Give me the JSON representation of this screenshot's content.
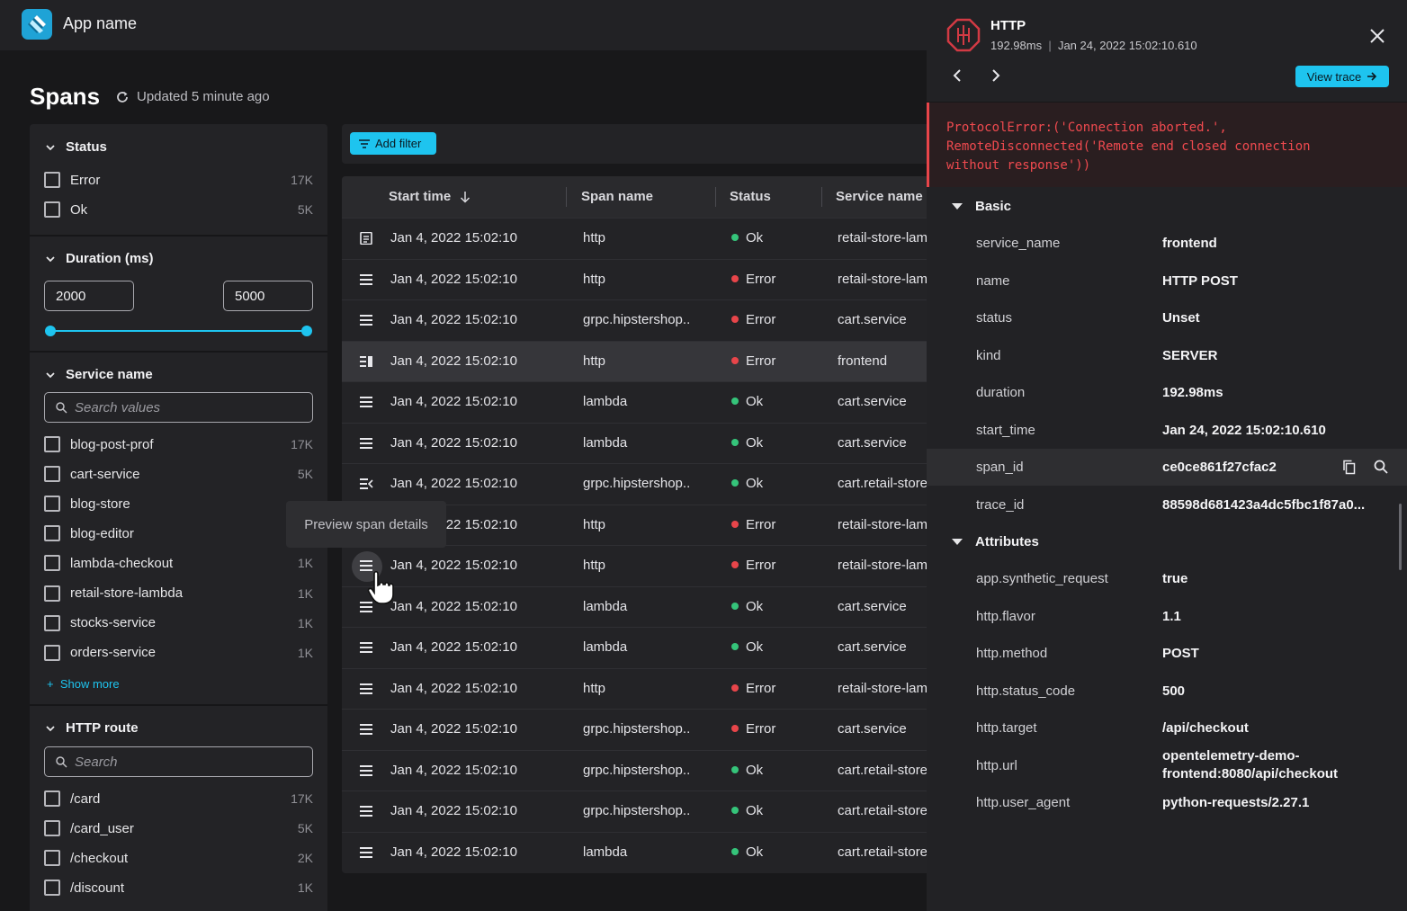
{
  "app": {
    "name": "App name"
  },
  "page": {
    "title": "Spans",
    "updated": "Updated 5 minute ago"
  },
  "filters": {
    "status": {
      "title": "Status",
      "items": [
        {
          "label": "Error",
          "count": "17K"
        },
        {
          "label": "Ok",
          "count": "5K"
        }
      ]
    },
    "duration": {
      "title": "Duration (ms)",
      "min": "2000",
      "max": "5000"
    },
    "service": {
      "title": "Service name",
      "placeholder": "Search values",
      "items": [
        {
          "label": "blog-post-prof",
          "count": "17K"
        },
        {
          "label": "cart-service",
          "count": "5K"
        },
        {
          "label": "blog-store",
          "count": ""
        },
        {
          "label": "blog-editor",
          "count": ""
        },
        {
          "label": "lambda-checkout",
          "count": "1K"
        },
        {
          "label": "retail-store-lambda",
          "count": "1K"
        },
        {
          "label": "stocks-service",
          "count": "1K"
        },
        {
          "label": "orders-service",
          "count": "1K"
        }
      ],
      "show_more": "Show more"
    },
    "route": {
      "title": "HTTP route",
      "placeholder": "Search",
      "items": [
        {
          "label": "/card",
          "count": "17K"
        },
        {
          "label": "/card_user",
          "count": "5K"
        },
        {
          "label": "/checkout",
          "count": "2K"
        },
        {
          "label": "/discount",
          "count": "1K"
        }
      ]
    }
  },
  "toolbar": {
    "add_filter": "Add filter"
  },
  "table": {
    "columns": [
      "Start time",
      "Span name",
      "Status",
      "Service name"
    ],
    "rows": [
      {
        "time": "Jan 4, 2022  15:02:10",
        "span": "http",
        "status": "Ok",
        "service": "retail-store-lambda"
      },
      {
        "time": "Jan 4, 2022  15:02:10",
        "span": "http",
        "status": "Error",
        "service": "retail-store-lambda"
      },
      {
        "time": "Jan 4, 2022  15:02:10",
        "span": "grpc.hipstershop..",
        "status": "Error",
        "service": "cart.service"
      },
      {
        "time": "Jan 4, 2022  15:02:10",
        "span": "http",
        "status": "Error",
        "service": "frontend"
      },
      {
        "time": "Jan 4, 2022  15:02:10",
        "span": "lambda",
        "status": "Ok",
        "service": "cart.service"
      },
      {
        "time": "Jan 4, 2022  15:02:10",
        "span": "lambda",
        "status": "Ok",
        "service": "cart.service"
      },
      {
        "time": "Jan 4, 2022  15:02:10",
        "span": "grpc.hipstershop..",
        "status": "Ok",
        "service": "cart.retail-store"
      },
      {
        "time": "Jan 4, 2022  15:02:10",
        "span": "http",
        "status": "Error",
        "service": "retail-store-lambda"
      },
      {
        "time": "Jan 4, 2022  15:02:10",
        "span": "http",
        "status": "Error",
        "service": "retail-store-lambda"
      },
      {
        "time": "Jan 4, 2022  15:02:10",
        "span": "lambda",
        "status": "Ok",
        "service": "cart.service"
      },
      {
        "time": "Jan 4, 2022  15:02:10",
        "span": "lambda",
        "status": "Ok",
        "service": "cart.service"
      },
      {
        "time": "Jan 4, 2022  15:02:10",
        "span": "http",
        "status": "Error",
        "service": "retail-store-lambda"
      },
      {
        "time": "Jan 4, 2022  15:02:10",
        "span": "grpc.hipstershop..",
        "status": "Error",
        "service": "cart.service"
      },
      {
        "time": "Jan 4, 2022  15:02:10",
        "span": "grpc.hipstershop..",
        "status": "Ok",
        "service": "cart.retail-store"
      },
      {
        "time": "Jan 4, 2022  15:02:10",
        "span": "grpc.hipstershop..",
        "status": "Ok",
        "service": "cart.retail-store"
      },
      {
        "time": "Jan 4, 2022  15:02:10",
        "span": "lambda",
        "status": "Ok",
        "service": "cart.retail-store"
      }
    ]
  },
  "tooltip": "Preview span details",
  "panel": {
    "title": "HTTP",
    "duration": "192.98ms",
    "timestamp": "Jan 24, 2022  15:02:10.610",
    "view_trace": "View trace",
    "error": "ProtocolError:('Connection aborted.',\nRemoteDisconnected('Remote end closed connection\nwithout response'))",
    "basic_title": "Basic",
    "basic": [
      {
        "k": "service_name",
        "v": "frontend"
      },
      {
        "k": "name",
        "v": "HTTP POST"
      },
      {
        "k": "status",
        "v": "Unset"
      },
      {
        "k": "kind",
        "v": "SERVER"
      },
      {
        "k": "duration",
        "v": "192.98ms"
      },
      {
        "k": "start_time",
        "v": "Jan 24, 2022  15:02:10.610"
      },
      {
        "k": "span_id",
        "v": "ce0ce861f27cfac2"
      },
      {
        "k": "trace_id",
        "v": "88598d681423a4dc5fbc1f87a0..."
      }
    ],
    "attributes_title": "Attributes",
    "attributes": [
      {
        "k": "app.synthetic_request",
        "v": "true"
      },
      {
        "k": "http.flavor",
        "v": "1.1"
      },
      {
        "k": "http.method",
        "v": "POST"
      },
      {
        "k": "http.status_code",
        "v": "500"
      },
      {
        "k": "http.target",
        "v": "/api/checkout"
      },
      {
        "k": "http.url",
        "v": "opentelemetry-demo-\nfrontend:8080/api/checkout"
      },
      {
        "k": "http.user_agent",
        "v": "python-requests/2.27.1"
      }
    ]
  },
  "colors": {
    "accent": "#1ec4ef",
    "ok": "#35c47a",
    "error": "#e8454a"
  }
}
